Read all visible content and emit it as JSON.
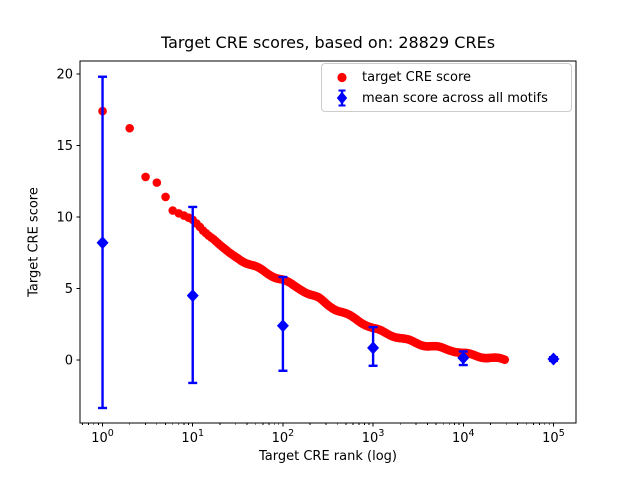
{
  "title": "Target CRE scores, based on: 28829 CREs",
  "axes": {
    "xlabel": "Target CRE rank (log)",
    "ylabel": "Target CRE score",
    "x_scale": "log",
    "xlim_log10": [
      -0.25,
      5.25
    ],
    "ylim": [
      -4.4,
      20.9
    ],
    "x_major_tick_exponents": [
      0,
      1,
      2,
      3,
      4,
      5
    ],
    "x_tick_base": "10",
    "y_ticks": [
      "0",
      "5",
      "10",
      "15",
      "20"
    ],
    "grid": "off"
  },
  "legend": {
    "location": "upper right",
    "items": [
      {
        "label": "target CRE score",
        "marker": "circle",
        "color": "#ff0000"
      },
      {
        "label": "mean score across all motifs",
        "marker": "diamond-errorbar",
        "color": "#0000ff"
      }
    ]
  },
  "colors": {
    "red_series": "#ff0000",
    "blue_series": "#0000ff",
    "spine": "#000000",
    "legend_border": "#cccccc"
  },
  "chart_data": {
    "type": "scatter",
    "title": "Target CRE scores, based on: 28829 CREs",
    "xlabel": "Target CRE rank (log)",
    "ylabel": "Target CRE score",
    "x_scale": "log",
    "xlim": [
      0.56,
      178000
    ],
    "ylim": [
      -4.4,
      20.9
    ],
    "legend_position": "upper right",
    "series": [
      {
        "name": "target CRE score",
        "color": "#ff0000",
        "marker": "circle",
        "note": "dense decreasing curve of 28829 ranked points; sampled anchors [rank, score]",
        "samples": [
          [
            1,
            17.4
          ],
          [
            2,
            16.2
          ],
          [
            3,
            12.8
          ],
          [
            4,
            12.4
          ],
          [
            5,
            11.4
          ],
          [
            6,
            10.45
          ],
          [
            7,
            10.25
          ],
          [
            8,
            10.1
          ],
          [
            9,
            9.95
          ],
          [
            10,
            9.8
          ],
          [
            11,
            9.55
          ],
          [
            12,
            9.3
          ],
          [
            13,
            9.05
          ],
          [
            15,
            8.7
          ],
          [
            17,
            8.45
          ],
          [
            20,
            8.05
          ],
          [
            25,
            7.55
          ],
          [
            30,
            7.2
          ],
          [
            40,
            6.8
          ],
          [
            50,
            6.5
          ],
          [
            65,
            6.1
          ],
          [
            80,
            5.85
          ],
          [
            100,
            5.6
          ],
          [
            130,
            5.2
          ],
          [
            160,
            4.95
          ],
          [
            200,
            4.6
          ],
          [
            250,
            4.3
          ],
          [
            300,
            3.95
          ],
          [
            400,
            3.5
          ],
          [
            500,
            3.2
          ],
          [
            650,
            2.85
          ],
          [
            800,
            2.55
          ],
          [
            1000,
            2.2
          ],
          [
            1300,
            1.95
          ],
          [
            1700,
            1.7
          ],
          [
            2200,
            1.45
          ],
          [
            3000,
            1.2
          ],
          [
            4000,
            1.0
          ],
          [
            5500,
            0.85
          ],
          [
            7500,
            0.7
          ],
          [
            10000,
            0.45
          ],
          [
            14000,
            0.3
          ],
          [
            20000,
            0.15
          ],
          [
            28829,
            0.02
          ]
        ]
      },
      {
        "name": "mean score across all motifs",
        "color": "#0000ff",
        "marker": "diamond",
        "points": [
          {
            "rank": 1,
            "mean": 8.2,
            "err_lo": -3.35,
            "err_hi": 19.8
          },
          {
            "rank": 10,
            "mean": 4.5,
            "err_lo": -1.6,
            "err_hi": 10.7
          },
          {
            "rank": 100,
            "mean": 2.4,
            "err_lo": -0.75,
            "err_hi": 5.8
          },
          {
            "rank": 1000,
            "mean": 0.85,
            "err_lo": -0.4,
            "err_hi": 2.3
          },
          {
            "rank": 10000,
            "mean": 0.15,
            "err_lo": -0.35,
            "err_hi": 0.6
          },
          {
            "rank": 100000,
            "mean": 0.07,
            "err_lo": -0.05,
            "err_hi": 0.2
          }
        ]
      }
    ]
  }
}
